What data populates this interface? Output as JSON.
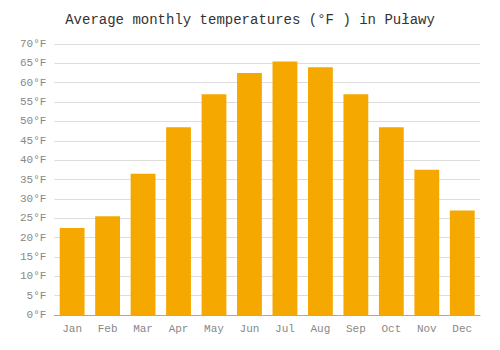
{
  "chart_data": {
    "type": "bar",
    "title": "Average monthly temperatures (°F ) in Puławy",
    "categories": [
      "Jan",
      "Feb",
      "Mar",
      "Apr",
      "May",
      "Jun",
      "Jul",
      "Aug",
      "Sep",
      "Oct",
      "Nov",
      "Dec"
    ],
    "values": [
      22.5,
      25.5,
      36.5,
      48.5,
      57.0,
      62.5,
      65.5,
      64.0,
      57.0,
      48.5,
      37.5,
      27.0
    ],
    "color": "#F5A800",
    "ylim": [
      0,
      70
    ],
    "yticks": [
      {
        "value": 0,
        "label": "0°F"
      },
      {
        "value": 5,
        "label": "5°F"
      },
      {
        "value": 10,
        "label": "10°F"
      },
      {
        "value": 15,
        "label": "15°F"
      },
      {
        "value": 20,
        "label": "20°F"
      },
      {
        "value": 25,
        "label": "25°F"
      },
      {
        "value": 30,
        "label": "30°F"
      },
      {
        "value": 35,
        "label": "35°F"
      },
      {
        "value": 40,
        "label": "40°F"
      },
      {
        "value": 45,
        "label": "45°F"
      },
      {
        "value": 50,
        "label": "50°F"
      },
      {
        "value": 55,
        "label": "55°F"
      },
      {
        "value": 60,
        "label": "60°F"
      },
      {
        "value": 65,
        "label": "65°F"
      },
      {
        "value": 70,
        "label": "70°F"
      }
    ],
    "grid": true
  }
}
